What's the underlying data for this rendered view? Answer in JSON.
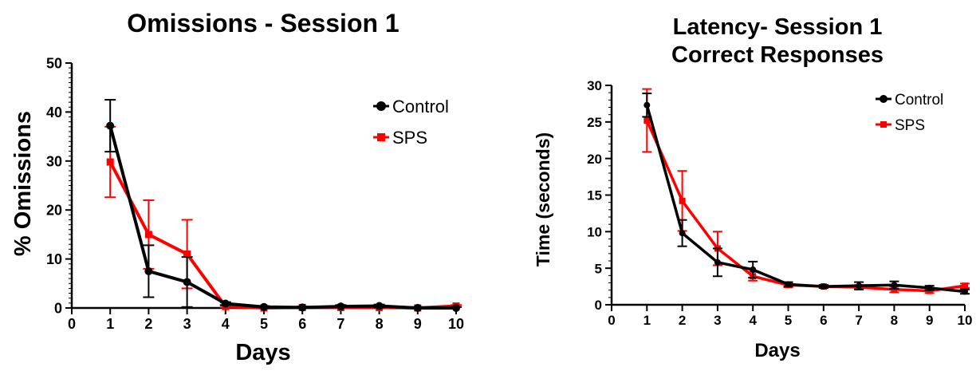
{
  "chart_data": [
    {
      "type": "line",
      "title": "Omissions - Session 1",
      "xlabel": "Days",
      "ylabel": "% Omissions",
      "xlim": [
        0,
        10
      ],
      "ylim": [
        0,
        50
      ],
      "x": [
        1,
        2,
        3,
        4,
        5,
        6,
        7,
        8,
        9,
        10
      ],
      "xticks": [
        "0",
        "1",
        "2",
        "3",
        "4",
        "5",
        "6",
        "7",
        "8",
        "9",
        "10"
      ],
      "yticks": [
        "0",
        "10",
        "20",
        "30",
        "40",
        "50"
      ],
      "legend_position": "top-right",
      "series": [
        {
          "name": "Control",
          "color": "#000000",
          "marker": "circle",
          "values": [
            37.2,
            7.5,
            5.3,
            0.9,
            0.2,
            0.1,
            0.3,
            0.4,
            0.0,
            0.0
          ],
          "error": [
            5.3,
            5.3,
            5.1,
            0.3,
            0.2,
            0.2,
            0.3,
            0.3,
            0.2,
            0.2
          ]
        },
        {
          "name": "SPS",
          "color": "#ff0000",
          "marker": "square",
          "values": [
            29.8,
            15.0,
            11.0,
            0.3,
            0.0,
            0.1,
            0.1,
            0.1,
            0.0,
            0.4
          ],
          "error": [
            7.2,
            7.0,
            7.0,
            0.2,
            0.1,
            0.1,
            0.1,
            0.1,
            0.1,
            0.2
          ]
        }
      ]
    },
    {
      "type": "line",
      "title": "Latency- Session 1",
      "subtitle": "Correct Responses",
      "xlabel": "Days",
      "ylabel": "Time (seconds)",
      "xlim": [
        0,
        10
      ],
      "ylim": [
        0,
        30
      ],
      "x": [
        1,
        2,
        3,
        4,
        5,
        6,
        7,
        8,
        9,
        10
      ],
      "xticks": [
        "0",
        "1",
        "2",
        "3",
        "4",
        "5",
        "6",
        "7",
        "8",
        "9",
        "10"
      ],
      "yticks": [
        "0",
        "5",
        "10",
        "15",
        "20",
        "25",
        "30"
      ],
      "legend_position": "top-right",
      "series": [
        {
          "name": "Control",
          "color": "#000000",
          "marker": "circle",
          "values": [
            27.3,
            9.8,
            5.8,
            4.8,
            2.8,
            2.5,
            2.6,
            2.7,
            2.3,
            1.8
          ],
          "error": [
            1.6,
            1.8,
            1.9,
            1.1,
            0.3,
            0.2,
            0.5,
            0.5,
            0.3,
            0.3
          ]
        },
        {
          "name": "SPS",
          "color": "#ff0000",
          "marker": "square",
          "values": [
            25.2,
            14.2,
            7.7,
            3.9,
            2.7,
            2.5,
            2.4,
            2.1,
            1.9,
            2.6
          ],
          "error": [
            4.3,
            4.1,
            2.3,
            0.6,
            0.3,
            0.2,
            0.3,
            0.4,
            0.3,
            0.3
          ]
        }
      ]
    }
  ]
}
